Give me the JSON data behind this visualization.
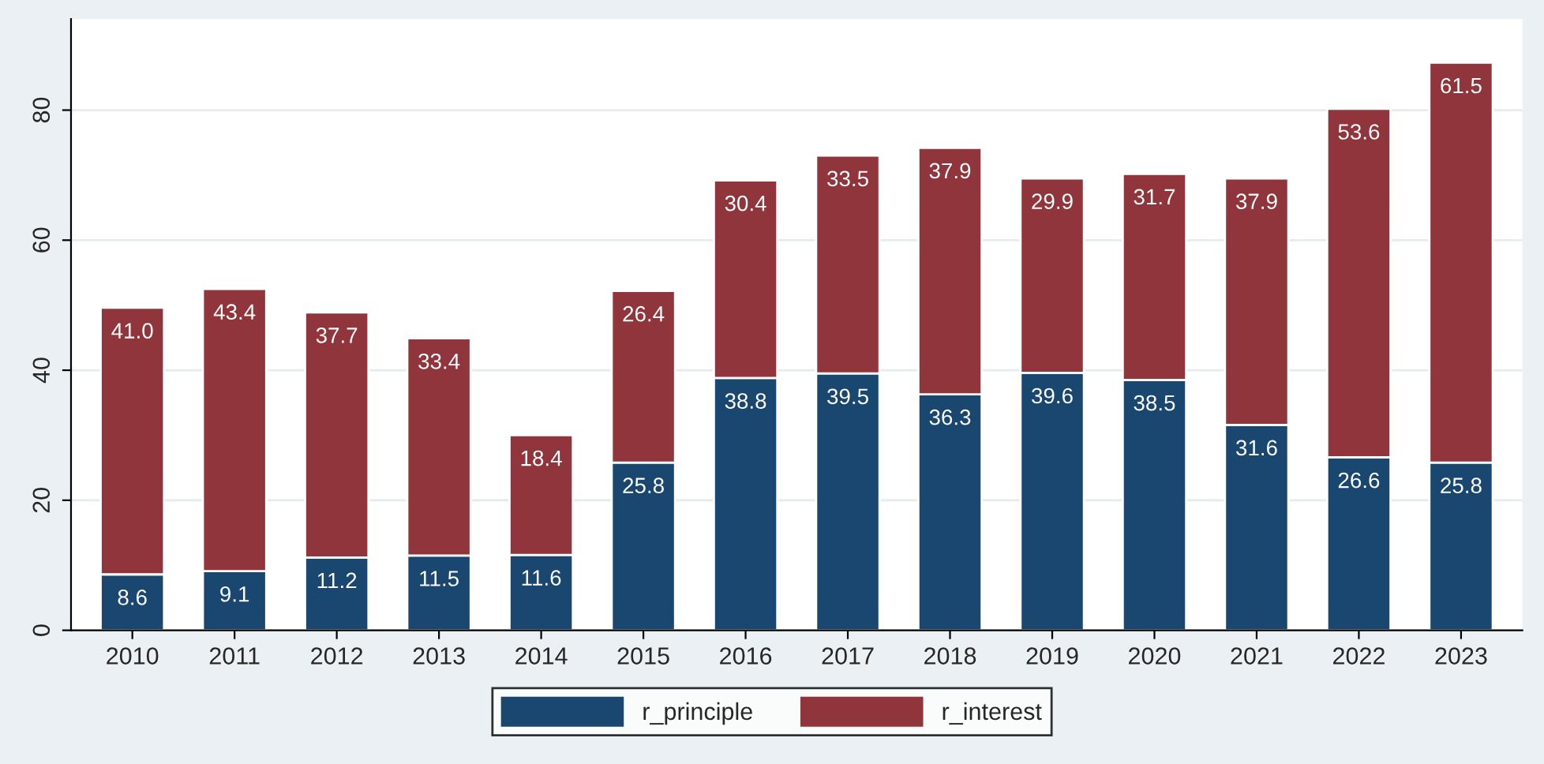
{
  "chart_data": {
    "type": "bar",
    "stacked": true,
    "categories": [
      "2010",
      "2011",
      "2012",
      "2013",
      "2014",
      "2015",
      "2016",
      "2017",
      "2018",
      "2019",
      "2020",
      "2021",
      "2022",
      "2023"
    ],
    "series": [
      {
        "name": "r_principle",
        "color": "#1a476f",
        "values": [
          8.6,
          9.1,
          11.2,
          11.5,
          11.6,
          25.8,
          38.8,
          39.5,
          36.3,
          39.6,
          38.5,
          31.6,
          26.6,
          25.8
        ],
        "value_labels": [
          "8.6",
          "9.1",
          "11.2",
          "11.5",
          "11.6",
          "25.8",
          "38.8",
          "39.5",
          "36.3",
          "39.6",
          "38.5",
          "31.6",
          "26.6",
          "25.8"
        ]
      },
      {
        "name": "r_interest",
        "color": "#90353b",
        "values": [
          41.0,
          43.4,
          37.7,
          33.4,
          18.4,
          26.4,
          30.4,
          33.5,
          37.9,
          29.9,
          31.7,
          37.9,
          53.6,
          61.5
        ],
        "value_labels": [
          "41.0",
          "43.4",
          "37.7",
          "33.4",
          "18.4",
          "26.4",
          "30.4",
          "33.5",
          "37.9",
          "29.9",
          "31.7",
          "37.9",
          "53.6",
          "61.5"
        ]
      }
    ],
    "ylim": [
      0,
      94
    ],
    "yticks": [
      0,
      20,
      40,
      60,
      80
    ],
    "grid": "y",
    "legend": "bottom"
  }
}
